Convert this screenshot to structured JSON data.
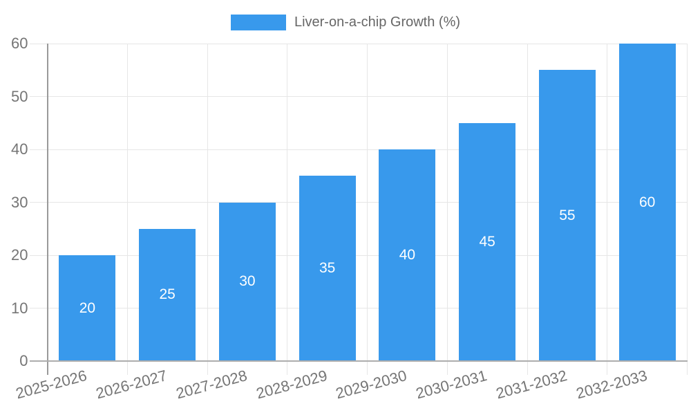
{
  "chart_data": {
    "type": "bar",
    "legend_label": "Liver-on-a-chip Growth (%)",
    "categories": [
      "2025-2026",
      "2026-2027",
      "2027-2028",
      "2028-2029",
      "2029-2030",
      "2030-2031",
      "2031-2032",
      "2032-2033"
    ],
    "values": [
      20,
      25,
      30,
      35,
      40,
      45,
      55,
      60
    ],
    "value_labels": [
      "20",
      "25",
      "30",
      "35",
      "40",
      "45",
      "55",
      "60"
    ],
    "ylim": [
      0,
      60
    ],
    "yticks": [
      0,
      10,
      20,
      30,
      40,
      50,
      60
    ],
    "grid": true,
    "legend_position": "top-center",
    "x_label_rotation_deg": -15,
    "colors": {
      "bar": "#3899EC",
      "value_label": "#FFFFFF",
      "tick_label": "#757575",
      "legend_text": "#666666",
      "gridline": "#E6E6E6",
      "axis_line": "#999999",
      "baseline": "#ADADAD"
    }
  }
}
